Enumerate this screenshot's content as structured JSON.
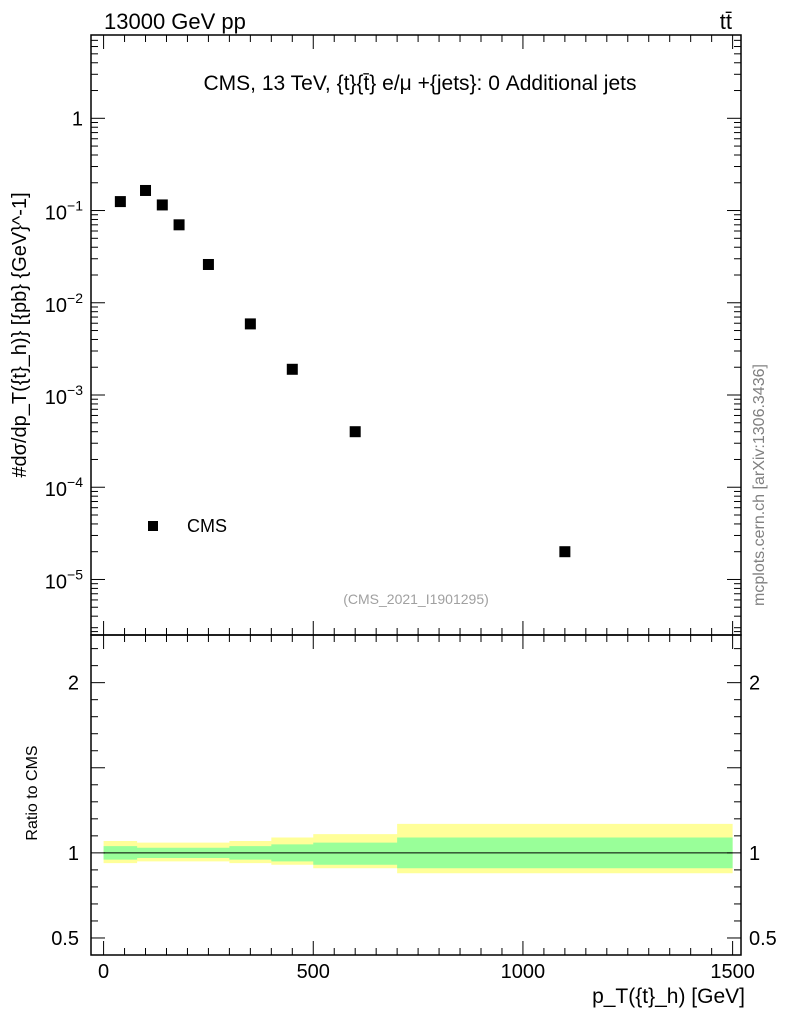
{
  "header": {
    "left": "13000 GeV pp",
    "right": "tt̄"
  },
  "watermark": "mcplots.cern.ch [arXiv:1306.3436]",
  "analysis_ref": "(CMS_2021_I1901295)",
  "chart_data": [
    {
      "type": "scatter",
      "title": "CMS, 13 TeV, {t}{t̄} e/μ +{jets}: 0 Additional jets",
      "ylabel": "#dσ/dp_T({t}_h)} [{pb} {GeV}^-1]",
      "yscale": "log",
      "ylim": [
        2.5e-06,
        8
      ],
      "xlim": [
        -30,
        1520
      ],
      "y_tick_labels": [
        "1",
        "10^-1",
        "10^-2",
        "10^-3",
        "10^-4",
        "10^-5"
      ],
      "legend": {
        "entries": [
          "CMS"
        ],
        "position": "bottom-left"
      },
      "series": [
        {
          "name": "CMS",
          "x": [
            40,
            100,
            140,
            180,
            250,
            350,
            450,
            600,
            1100
          ],
          "y": [
            0.125,
            0.165,
            0.115,
            0.07,
            0.026,
            0.0059,
            0.0019,
            0.0004,
            2e-05
          ]
        }
      ]
    },
    {
      "type": "area",
      "ylabel": "Ratio to CMS",
      "xlabel": "p_T({t}_h) [GeV]",
      "ylim": [
        0.4,
        2.28
      ],
      "xlim": [
        -30,
        1520
      ],
      "x_tick_labels": [
        "0",
        "500",
        "1000",
        "1500"
      ],
      "y_tick_labels": [
        "0.5",
        "1",
        "2"
      ],
      "reference_line": 1,
      "bins": [
        0,
        80,
        120,
        160,
        200,
        300,
        400,
        500,
        700,
        1500
      ],
      "band_inner": {
        "color": "#99ff99",
        "lower": [
          0.96,
          0.97,
          0.97,
          0.97,
          0.97,
          0.96,
          0.95,
          0.93,
          0.91
        ],
        "upper": [
          1.04,
          1.03,
          1.03,
          1.03,
          1.03,
          1.04,
          1.05,
          1.06,
          1.09
        ]
      },
      "band_outer": {
        "color": "#ffff99",
        "lower": [
          0.94,
          0.95,
          0.95,
          0.95,
          0.95,
          0.94,
          0.93,
          0.91,
          0.88
        ],
        "upper": [
          1.07,
          1.06,
          1.06,
          1.06,
          1.06,
          1.07,
          1.09,
          1.11,
          1.17
        ]
      }
    }
  ]
}
